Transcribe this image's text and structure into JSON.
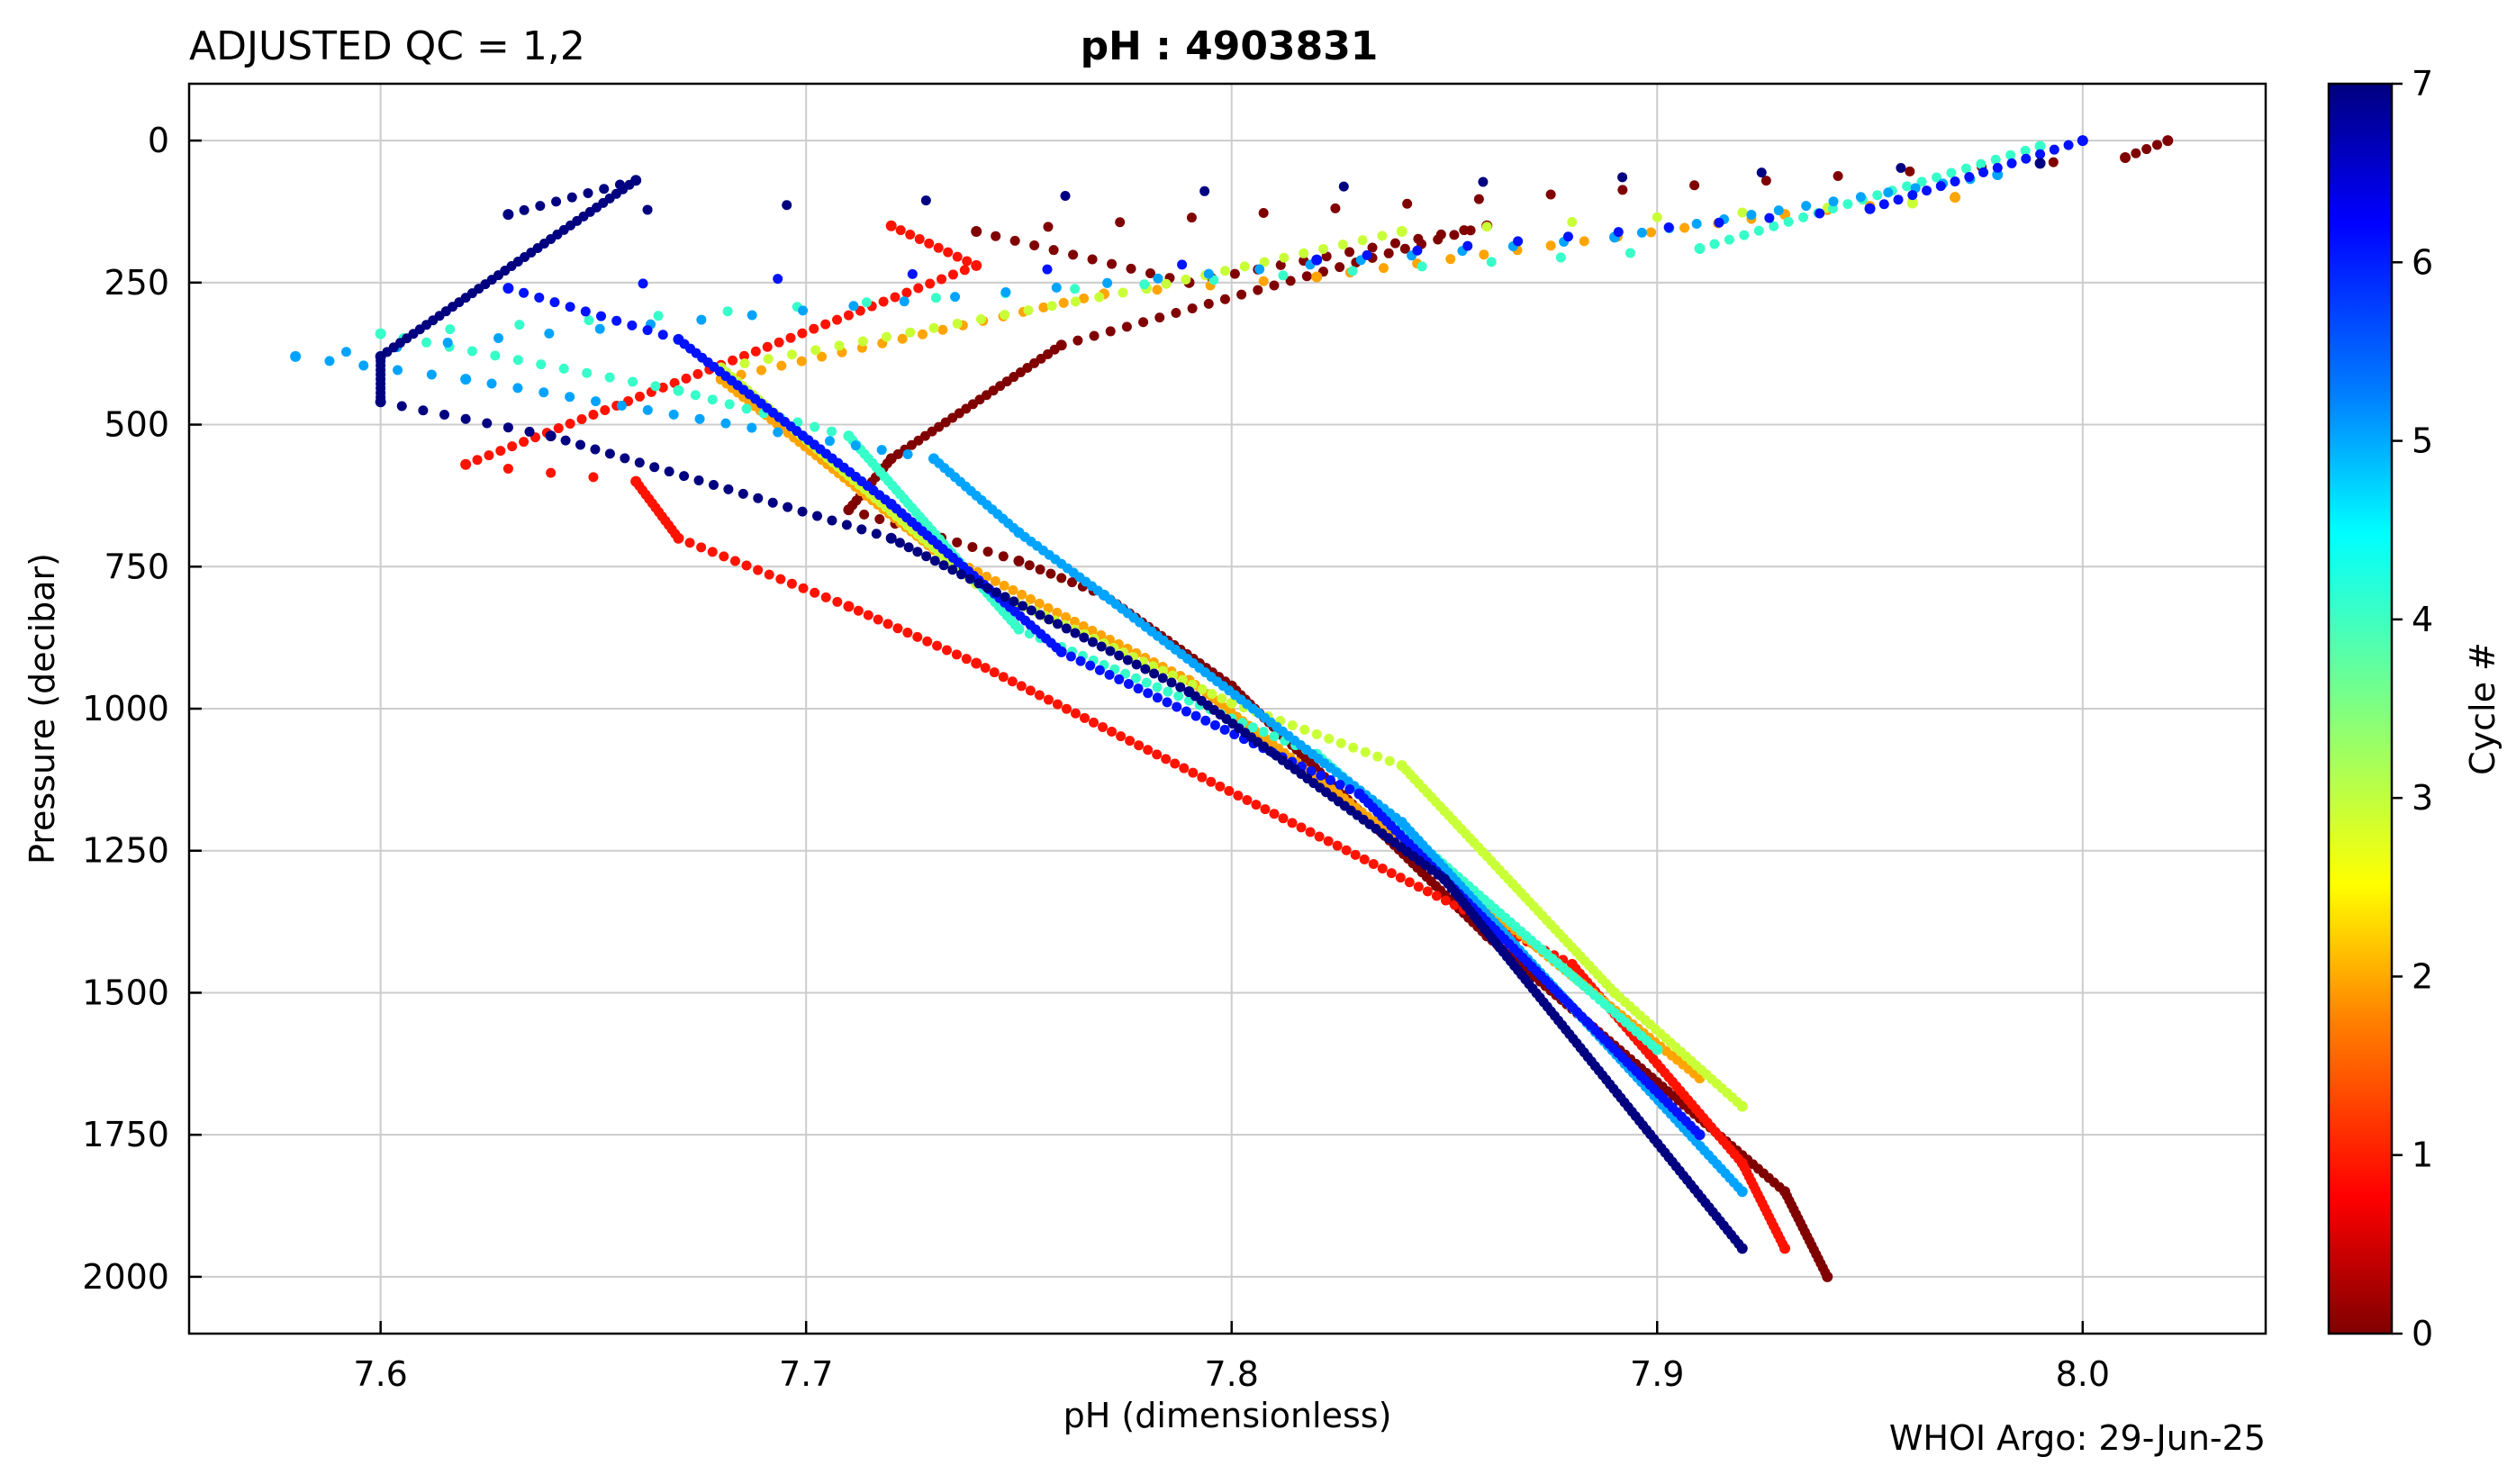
{
  "header": {
    "qc_label": "ADJUSTED QC = 1,2",
    "title": "pH : 4903831"
  },
  "footer": {
    "credit": "WHOI Argo: 29-Jun-25"
  },
  "chart_data": {
    "type": "scatter",
    "xlabel": "pH  (dimensionless)",
    "ylabel": "Pressure  (decibar)",
    "xlim": [
      7.555,
      8.043
    ],
    "ylim": [
      2100,
      -100
    ],
    "y_inverted": true,
    "grid": true,
    "x_ticks": [
      7.6,
      7.7,
      7.8,
      7.9,
      8.0
    ],
    "x_tick_labels": [
      "7.6",
      "7.7",
      "7.8",
      "7.9",
      "8.0"
    ],
    "y_ticks": [
      0,
      250,
      500,
      750,
      1000,
      1250,
      1500,
      1750,
      2000
    ],
    "y_tick_labels": [
      "0",
      "250",
      "500",
      "750",
      "1000",
      "1250",
      "1500",
      "1750",
      "2000"
    ],
    "colorbar": {
      "label": "Cycle #",
      "range": [
        0,
        7
      ],
      "ticks": [
        0,
        1,
        2,
        3,
        4,
        5,
        6,
        7
      ],
      "tick_labels": [
        "0",
        "1",
        "2",
        "3",
        "4",
        "5",
        "6",
        "7"
      ],
      "colormap": "jet",
      "colors": [
        "#800000",
        "#ff0000",
        "#ff8000",
        "#ffff00",
        "#80ff80",
        "#00ffff",
        "#0080ff",
        "#0000ff",
        "#000080"
      ]
    },
    "series": [
      {
        "cycle": 0,
        "points": [
          [
            8.02,
            0
          ],
          [
            8.01,
            30
          ],
          [
            7.74,
            160
          ],
          [
            7.79,
            250
          ],
          [
            7.86,
            150
          ],
          [
            7.76,
            360
          ],
          [
            7.72,
            560
          ],
          [
            7.71,
            650
          ],
          [
            7.75,
            740
          ],
          [
            7.77,
            800
          ],
          [
            7.8,
            960
          ],
          [
            7.86,
            1400
          ],
          [
            7.93,
            1850
          ],
          [
            7.94,
            2000
          ]
        ]
      },
      {
        "cycle": 1,
        "points": [
          [
            7.72,
            150
          ],
          [
            7.74,
            220
          ],
          [
            7.62,
            570
          ],
          [
            7.66,
            600
          ],
          [
            7.67,
            700
          ],
          [
            7.71,
            820
          ],
          [
            7.74,
            920
          ],
          [
            7.88,
            1450
          ],
          [
            7.92,
            1800
          ],
          [
            7.93,
            1950
          ]
        ]
      },
      {
        "cycle": 2,
        "points": [
          [
            7.97,
            100
          ],
          [
            7.93,
            130
          ],
          [
            7.82,
            240
          ],
          [
            7.77,
            270
          ],
          [
            7.68,
            420
          ],
          [
            7.73,
            720
          ],
          [
            7.79,
            950
          ],
          [
            7.86,
            1350
          ],
          [
            7.91,
            1650
          ]
        ]
      },
      {
        "cycle": 3,
        "points": [
          [
            7.96,
            110
          ],
          [
            7.84,
            160
          ],
          [
            7.78,
            260
          ],
          [
            7.68,
            400
          ],
          [
            7.74,
            780
          ],
          [
            7.8,
            990
          ],
          [
            7.84,
            1100
          ],
          [
            7.89,
            1500
          ],
          [
            7.92,
            1700
          ]
        ]
      },
      {
        "cycle": 4,
        "points": [
          [
            7.99,
            10
          ],
          [
            7.91,
            190
          ],
          [
            7.6,
            340
          ],
          [
            7.67,
            440
          ],
          [
            7.71,
            520
          ],
          [
            7.75,
            860
          ],
          [
            7.82,
            1080
          ],
          [
            7.9,
            1600
          ]
        ]
      },
      {
        "cycle": 5,
        "points": [
          [
            7.98,
            60
          ],
          [
            7.89,
            170
          ],
          [
            7.58,
            380
          ],
          [
            7.62,
            420
          ],
          [
            7.73,
            560
          ],
          [
            7.75,
            690
          ],
          [
            7.77,
            800
          ],
          [
            7.84,
            1200
          ],
          [
            7.92,
            1850
          ]
        ]
      },
      {
        "cycle": 6,
        "points": [
          [
            8.0,
            0
          ],
          [
            7.95,
            120
          ],
          [
            7.82,
            210
          ],
          [
            7.63,
            260
          ],
          [
            7.67,
            350
          ],
          [
            7.72,
            640
          ],
          [
            7.76,
            900
          ],
          [
            7.83,
            1150
          ],
          [
            7.91,
            1750
          ]
        ]
      },
      {
        "cycle": 7,
        "points": [
          [
            7.99,
            40
          ],
          [
            7.63,
            130
          ],
          [
            7.66,
            70
          ],
          [
            7.6,
            380
          ],
          [
            7.6,
            460
          ],
          [
            7.64,
            520
          ],
          [
            7.72,
            700
          ],
          [
            7.79,
            970
          ],
          [
            7.85,
            1300
          ],
          [
            7.92,
            1950
          ]
        ]
      }
    ]
  }
}
